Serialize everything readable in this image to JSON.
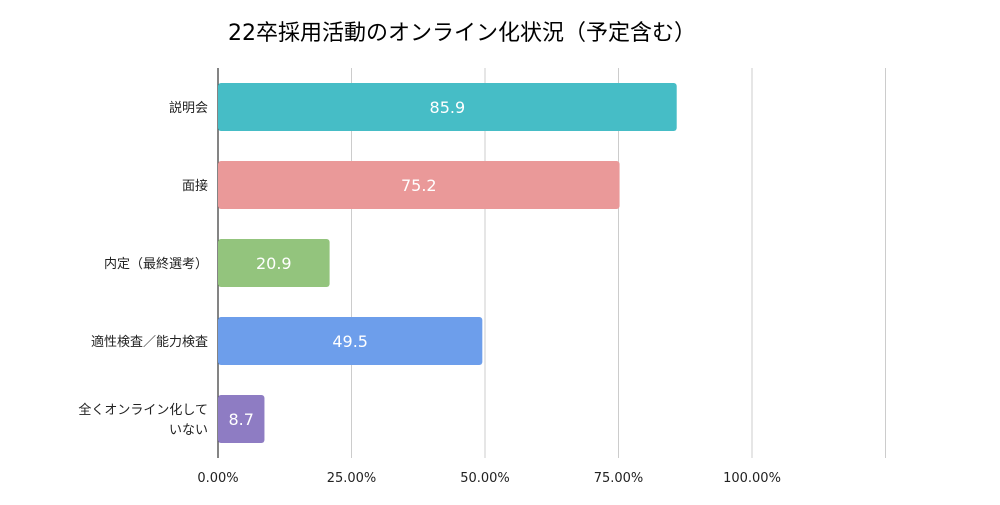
{
  "chart_data": {
    "type": "bar",
    "orientation": "horizontal",
    "title": "22卒採用活動のオンライン化状況（予定含む）",
    "categories": [
      "説明会",
      "面接",
      "内定（最終選考）",
      "適性検査／能力検査",
      "全くオンライン化していない"
    ],
    "category_lines": [
      [
        "説明会"
      ],
      [
        "面接"
      ],
      [
        "内定（最終選考）"
      ],
      [
        "適性検査／能力検査"
      ],
      [
        "全くオンライン化して",
        "いない"
      ]
    ],
    "values": [
      85.9,
      75.2,
      20.9,
      49.5,
      8.7
    ],
    "data_labels": [
      "85.9",
      "75.2",
      "20.9",
      "49.5",
      "8.7"
    ],
    "colors": [
      "#46bdc6",
      "#ea9999",
      "#93c47d",
      "#6d9eeb",
      "#8e7cc3"
    ],
    "xlim": [
      0,
      125
    ],
    "xticks": [
      0,
      25,
      50,
      75,
      100,
      125
    ],
    "xtick_labels": [
      "0.00%",
      "25.00%",
      "50.00%",
      "75.00%",
      "100.00%",
      ""
    ],
    "grid": true,
    "xlabel": "",
    "ylabel": ""
  }
}
